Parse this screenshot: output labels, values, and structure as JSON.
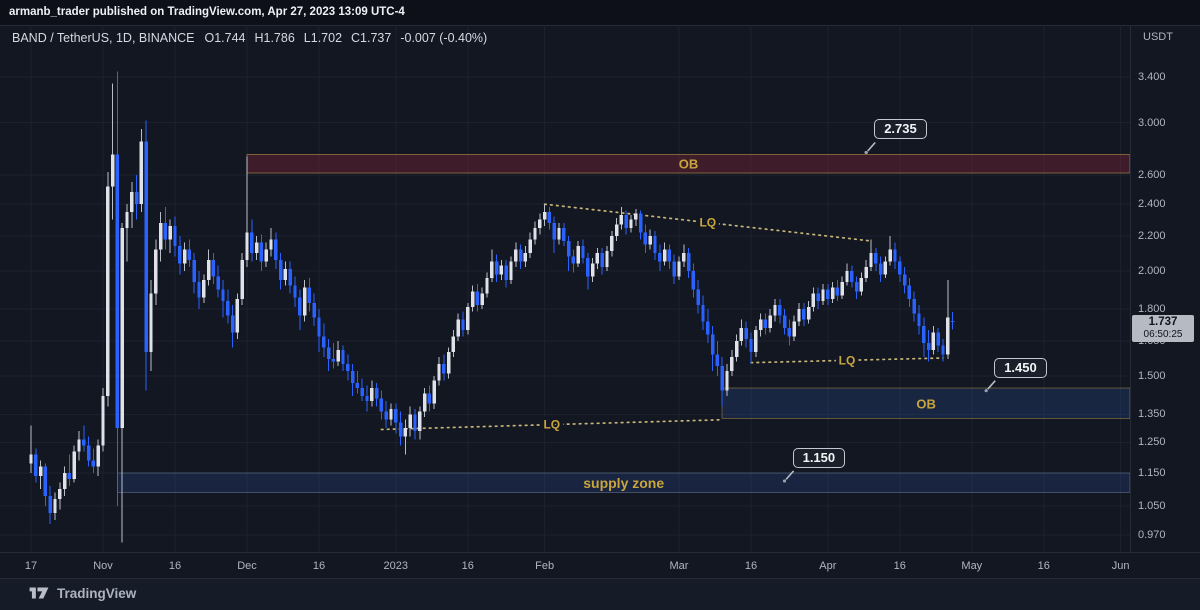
{
  "topbar": {
    "text": "armanb_trader published on TradingView.com, Apr 27, 2023 13:09 UTC-4"
  },
  "legend": {
    "symbol": "BAND / TetherUS, 1D, BINANCE",
    "values": [
      "O1.744",
      "H1.786",
      "L1.702",
      "C1.737",
      "-0.007 (-0.40%)"
    ]
  },
  "price_axis": {
    "currency": "USDT",
    "ticks": [
      "3.400",
      "3.000",
      "2.600",
      "2.400",
      "2.200",
      "2.000",
      "1.800",
      "1.650",
      "1.500",
      "1.350",
      "1.250",
      "1.150",
      "1.050",
      "0.970"
    ],
    "last_price": "1.737",
    "countdown": "06:50:25"
  },
  "time_axis": {
    "ticks": [
      {
        "label": "17",
        "i": 0
      },
      {
        "label": "Nov",
        "i": 15
      },
      {
        "label": "16",
        "i": 30
      },
      {
        "label": "Dec",
        "i": 45
      },
      {
        "label": "16",
        "i": 60
      },
      {
        "label": "2023",
        "i": 76
      },
      {
        "label": "16",
        "i": 91
      },
      {
        "label": "Feb",
        "i": 107
      },
      {
        "label": "Mar",
        "i": 135
      },
      {
        "label": "16",
        "i": 150
      },
      {
        "label": "Apr",
        "i": 166
      },
      {
        "label": "16",
        "i": 181
      },
      {
        "label": "May",
        "i": 196
      },
      {
        "label": "16",
        "i": 211
      },
      {
        "label": "Jun",
        "i": 227
      }
    ]
  },
  "footer": {
    "brand": "TradingView"
  },
  "colors": {
    "up": "#dfe2e8",
    "up_wick": "#b9bfc9",
    "down": "#2962ff",
    "accent_yellow": "#c9a53e",
    "dotted_line": "#c6b577",
    "badge_bg": "#b6bac3",
    "background": "#131722",
    "grid": "#1c2130"
  },
  "chart_data": {
    "type": "candlestick",
    "symbol": "BAND/USDT",
    "exchange": "BINANCE",
    "timeframe": "1D",
    "scale": "log",
    "start_date": "2022-10-17",
    "end_date": "2023-04-27",
    "ylim": [
      0.93,
      3.9
    ],
    "last": {
      "open": 1.744,
      "high": 1.786,
      "low": 1.702,
      "close": 1.737,
      "change": -0.007,
      "change_pct": -0.4
    },
    "zones": [
      {
        "kind": "ob-red",
        "label": "OB",
        "start_index": 45,
        "price_top": 2.75,
        "price_bottom": 2.615,
        "fill": "rgba(130,38,54,0.40)",
        "border": "rgba(193,157,72,0.55)",
        "label_size": 13
      },
      {
        "kind": "ob-blue",
        "label": "OB",
        "start_index": 144,
        "price_top": 1.45,
        "price_bottom": 1.335,
        "fill": "rgba(40,70,135,0.33)",
        "border": "rgba(193,157,72,0.45)",
        "label_size": 13
      },
      {
        "kind": "supply",
        "label": "supply zone",
        "start_index": 18,
        "price_top": 1.15,
        "price_bottom": 1.089,
        "fill": "rgba(40,70,135,0.30)",
        "border": "rgba(150,170,195,0.35)",
        "label_size": 14
      }
    ],
    "trendlines": [
      {
        "label": "LQ",
        "from_index": 107,
        "from_price": 2.4,
        "to_index": 175,
        "to_price": 2.17
      },
      {
        "label": "LQ",
        "from_index": 150,
        "from_price": 1.555,
        "to_index": 190,
        "to_price": 1.575
      },
      {
        "label": "LQ",
        "from_index": 73,
        "from_price": 1.295,
        "to_index": 144,
        "to_price": 1.33
      }
    ],
    "price_labels": [
      {
        "text": "2.735",
        "anchor_index": 174,
        "anchor_price": 2.765
      },
      {
        "text": "1.450",
        "anchor_index": 199,
        "anchor_price": 1.44
      },
      {
        "text": "1.150",
        "anchor_index": 157,
        "anchor_price": 1.125
      }
    ],
    "ohlc": [
      [
        1.18,
        1.31,
        1.15,
        1.21
      ],
      [
        1.21,
        1.23,
        1.12,
        1.14
      ],
      [
        1.14,
        1.19,
        1.1,
        1.17
      ],
      [
        1.17,
        1.18,
        1.05,
        1.08
      ],
      [
        1.08,
        1.11,
        1.0,
        1.03
      ],
      [
        1.03,
        1.09,
        1.01,
        1.07
      ],
      [
        1.07,
        1.12,
        1.04,
        1.1
      ],
      [
        1.1,
        1.17,
        1.08,
        1.15
      ],
      [
        1.15,
        1.21,
        1.11,
        1.13
      ],
      [
        1.13,
        1.24,
        1.12,
        1.22
      ],
      [
        1.22,
        1.29,
        1.19,
        1.26
      ],
      [
        1.26,
        1.31,
        1.22,
        1.24
      ],
      [
        1.24,
        1.27,
        1.17,
        1.19
      ],
      [
        1.19,
        1.23,
        1.15,
        1.17
      ],
      [
        1.17,
        1.26,
        1.14,
        1.24
      ],
      [
        1.24,
        1.45,
        1.22,
        1.42
      ],
      [
        1.42,
        2.62,
        1.38,
        2.52
      ],
      [
        2.52,
        3.34,
        2.3,
        2.75
      ],
      [
        2.75,
        3.45,
        1.05,
        1.3
      ],
      [
        1.3,
        2.28,
        0.95,
        2.25
      ],
      [
        2.25,
        2.4,
        2.05,
        2.35
      ],
      [
        2.35,
        2.55,
        2.25,
        2.48
      ],
      [
        2.48,
        2.6,
        2.3,
        2.4
      ],
      [
        2.4,
        2.95,
        2.35,
        2.85
      ],
      [
        2.85,
        3.02,
        1.44,
        1.6
      ],
      [
        1.6,
        1.95,
        1.52,
        1.88
      ],
      [
        1.88,
        2.18,
        1.82,
        2.12
      ],
      [
        2.12,
        2.35,
        2.05,
        2.28
      ],
      [
        2.28,
        2.38,
        2.12,
        2.18
      ],
      [
        2.18,
        2.3,
        2.1,
        2.26
      ],
      [
        2.26,
        2.32,
        2.08,
        2.14
      ],
      [
        2.14,
        2.2,
        1.98,
        2.04
      ],
      [
        2.04,
        2.16,
        2.0,
        2.12
      ],
      [
        2.12,
        2.18,
        2.02,
        2.06
      ],
      [
        2.06,
        2.1,
        1.88,
        1.94
      ],
      [
        1.94,
        2.0,
        1.8,
        1.86
      ],
      [
        1.86,
        1.98,
        1.83,
        1.95
      ],
      [
        1.95,
        2.12,
        1.92,
        2.06
      ],
      [
        2.06,
        2.1,
        1.93,
        1.97
      ],
      [
        1.97,
        2.03,
        1.86,
        1.9
      ],
      [
        1.9,
        1.95,
        1.76,
        1.84
      ],
      [
        1.84,
        1.9,
        1.73,
        1.77
      ],
      [
        1.77,
        1.82,
        1.62,
        1.69
      ],
      [
        1.69,
        1.88,
        1.66,
        1.85
      ],
      [
        1.85,
        2.1,
        1.82,
        2.06
      ],
      [
        2.06,
        2.735,
        2.02,
        2.22
      ],
      [
        2.22,
        2.3,
        2.05,
        2.1
      ],
      [
        2.1,
        2.2,
        2.06,
        2.16
      ],
      [
        2.16,
        2.21,
        2.0,
        2.05
      ],
      [
        2.05,
        2.16,
        2.02,
        2.12
      ],
      [
        2.12,
        2.25,
        2.08,
        2.18
      ],
      [
        2.18,
        2.22,
        2.01,
        2.06
      ],
      [
        2.06,
        2.1,
        1.9,
        1.95
      ],
      [
        1.95,
        2.05,
        1.92,
        2.01
      ],
      [
        2.01,
        2.05,
        1.88,
        1.92
      ],
      [
        1.92,
        1.97,
        1.81,
        1.86
      ],
      [
        1.86,
        1.9,
        1.7,
        1.77
      ],
      [
        1.77,
        1.95,
        1.74,
        1.91
      ],
      [
        1.91,
        1.96,
        1.79,
        1.83
      ],
      [
        1.83,
        1.88,
        1.72,
        1.76
      ],
      [
        1.76,
        1.8,
        1.6,
        1.67
      ],
      [
        1.67,
        1.73,
        1.58,
        1.62
      ],
      [
        1.62,
        1.66,
        1.52,
        1.57
      ],
      [
        1.57,
        1.64,
        1.53,
        1.56
      ],
      [
        1.56,
        1.65,
        1.54,
        1.61
      ],
      [
        1.61,
        1.63,
        1.52,
        1.55
      ],
      [
        1.55,
        1.59,
        1.48,
        1.52
      ],
      [
        1.52,
        1.55,
        1.42,
        1.47
      ],
      [
        1.47,
        1.52,
        1.43,
        1.45
      ],
      [
        1.45,
        1.49,
        1.4,
        1.42
      ],
      [
        1.42,
        1.46,
        1.36,
        1.4
      ],
      [
        1.4,
        1.48,
        1.38,
        1.45
      ],
      [
        1.45,
        1.47,
        1.38,
        1.41
      ],
      [
        1.41,
        1.44,
        1.33,
        1.36
      ],
      [
        1.36,
        1.4,
        1.3,
        1.33
      ],
      [
        1.33,
        1.39,
        1.31,
        1.37
      ],
      [
        1.37,
        1.39,
        1.28,
        1.32
      ],
      [
        1.32,
        1.36,
        1.24,
        1.27
      ],
      [
        1.27,
        1.33,
        1.21,
        1.3
      ],
      [
        1.3,
        1.38,
        1.27,
        1.35
      ],
      [
        1.35,
        1.37,
        1.26,
        1.29
      ],
      [
        1.29,
        1.38,
        1.26,
        1.36
      ],
      [
        1.36,
        1.45,
        1.34,
        1.43
      ],
      [
        1.43,
        1.46,
        1.36,
        1.39
      ],
      [
        1.39,
        1.5,
        1.37,
        1.48
      ],
      [
        1.48,
        1.58,
        1.46,
        1.55
      ],
      [
        1.55,
        1.59,
        1.48,
        1.51
      ],
      [
        1.51,
        1.62,
        1.49,
        1.6
      ],
      [
        1.6,
        1.7,
        1.58,
        1.67
      ],
      [
        1.67,
        1.78,
        1.65,
        1.75
      ],
      [
        1.75,
        1.79,
        1.67,
        1.7
      ],
      [
        1.7,
        1.83,
        1.68,
        1.81
      ],
      [
        1.81,
        1.92,
        1.79,
        1.89
      ],
      [
        1.89,
        1.93,
        1.79,
        1.82
      ],
      [
        1.82,
        1.91,
        1.8,
        1.88
      ],
      [
        1.88,
        1.99,
        1.86,
        1.96
      ],
      [
        1.96,
        2.12,
        1.94,
        2.05
      ],
      [
        2.05,
        2.09,
        1.94,
        1.98
      ],
      [
        1.98,
        2.06,
        1.95,
        2.03
      ],
      [
        2.03,
        2.06,
        1.91,
        1.95
      ],
      [
        1.95,
        2.08,
        1.93,
        2.05
      ],
      [
        2.05,
        2.16,
        2.02,
        2.12
      ],
      [
        2.12,
        2.15,
        2.01,
        2.05
      ],
      [
        2.05,
        2.14,
        2.02,
        2.1
      ],
      [
        2.1,
        2.22,
        2.07,
        2.18
      ],
      [
        2.18,
        2.29,
        2.15,
        2.25
      ],
      [
        2.25,
        2.34,
        2.21,
        2.3
      ],
      [
        2.3,
        2.4,
        2.26,
        2.35
      ],
      [
        2.35,
        2.38,
        2.24,
        2.28
      ],
      [
        2.28,
        2.32,
        2.1,
        2.18
      ],
      [
        2.18,
        2.28,
        2.15,
        2.25
      ],
      [
        2.25,
        2.28,
        2.14,
        2.17
      ],
      [
        2.17,
        2.2,
        2.0,
        2.08
      ],
      [
        2.08,
        2.12,
        1.99,
        2.04
      ],
      [
        2.04,
        2.17,
        2.02,
        2.14
      ],
      [
        2.14,
        2.18,
        2.04,
        2.07
      ],
      [
        2.07,
        2.1,
        1.9,
        1.97
      ],
      [
        1.97,
        2.07,
        1.94,
        2.04
      ],
      [
        2.04,
        2.13,
        2.01,
        2.1
      ],
      [
        2.1,
        2.13,
        1.98,
        2.02
      ],
      [
        2.02,
        2.14,
        2.0,
        2.11
      ],
      [
        2.11,
        2.23,
        2.08,
        2.2
      ],
      [
        2.2,
        2.31,
        2.17,
        2.27
      ],
      [
        2.27,
        2.38,
        2.24,
        2.33
      ],
      [
        2.33,
        2.36,
        2.21,
        2.25
      ],
      [
        2.25,
        2.33,
        2.22,
        2.3
      ],
      [
        2.3,
        2.37,
        2.26,
        2.34
      ],
      [
        2.34,
        2.36,
        2.18,
        2.22
      ],
      [
        2.22,
        2.27,
        2.1,
        2.15
      ],
      [
        2.15,
        2.24,
        2.12,
        2.2
      ],
      [
        2.2,
        2.23,
        2.06,
        2.1
      ],
      [
        2.1,
        2.15,
        2.0,
        2.05
      ],
      [
        2.05,
        2.16,
        2.03,
        2.12
      ],
      [
        2.12,
        2.15,
        2.01,
        2.05
      ],
      [
        2.05,
        2.09,
        1.93,
        1.97
      ],
      [
        1.97,
        2.08,
        1.95,
        2.05
      ],
      [
        2.05,
        2.15,
        2.02,
        2.1
      ],
      [
        2.1,
        2.13,
        1.96,
        2.0
      ],
      [
        2.0,
        2.04,
        1.86,
        1.9
      ],
      [
        1.9,
        1.95,
        1.78,
        1.82
      ],
      [
        1.82,
        1.87,
        1.7,
        1.74
      ],
      [
        1.74,
        1.8,
        1.64,
        1.68
      ],
      [
        1.68,
        1.72,
        1.52,
        1.59
      ],
      [
        1.59,
        1.65,
        1.5,
        1.54
      ],
      [
        1.54,
        1.58,
        1.38,
        1.44
      ],
      [
        1.44,
        1.55,
        1.42,
        1.52
      ],
      [
        1.52,
        1.61,
        1.5,
        1.58
      ],
      [
        1.58,
        1.68,
        1.56,
        1.65
      ],
      [
        1.65,
        1.75,
        1.63,
        1.71
      ],
      [
        1.71,
        1.74,
        1.62,
        1.66
      ],
      [
        1.66,
        1.69,
        1.55,
        1.6
      ],
      [
        1.6,
        1.72,
        1.58,
        1.7
      ],
      [
        1.7,
        1.78,
        1.67,
        1.75
      ],
      [
        1.75,
        1.78,
        1.68,
        1.71
      ],
      [
        1.71,
        1.8,
        1.69,
        1.77
      ],
      [
        1.77,
        1.85,
        1.74,
        1.82
      ],
      [
        1.82,
        1.85,
        1.73,
        1.77
      ],
      [
        1.77,
        1.8,
        1.68,
        1.71
      ],
      [
        1.71,
        1.75,
        1.63,
        1.67
      ],
      [
        1.67,
        1.77,
        1.65,
        1.74
      ],
      [
        1.74,
        1.83,
        1.72,
        1.8
      ],
      [
        1.8,
        1.83,
        1.72,
        1.75
      ],
      [
        1.75,
        1.84,
        1.73,
        1.81
      ],
      [
        1.81,
        1.91,
        1.79,
        1.88
      ],
      [
        1.88,
        1.91,
        1.8,
        1.84
      ],
      [
        1.84,
        1.93,
        1.82,
        1.9
      ],
      [
        1.9,
        1.93,
        1.82,
        1.85
      ],
      [
        1.85,
        1.94,
        1.83,
        1.91
      ],
      [
        1.91,
        1.95,
        1.84,
        1.87
      ],
      [
        1.87,
        1.97,
        1.85,
        1.94
      ],
      [
        1.94,
        2.04,
        1.92,
        2.0
      ],
      [
        2.0,
        2.03,
        1.91,
        1.94
      ],
      [
        1.94,
        1.97,
        1.85,
        1.89
      ],
      [
        1.89,
        1.99,
        1.87,
        1.96
      ],
      [
        1.96,
        2.06,
        1.94,
        2.02
      ],
      [
        2.02,
        2.18,
        2.0,
        2.1
      ],
      [
        2.1,
        2.13,
        2.0,
        2.04
      ],
      [
        2.04,
        2.08,
        1.94,
        1.98
      ],
      [
        1.98,
        2.08,
        1.96,
        2.05
      ],
      [
        2.05,
        2.2,
        2.03,
        2.12
      ],
      [
        2.12,
        2.16,
        2.01,
        2.05
      ],
      [
        2.05,
        2.08,
        1.94,
        1.98
      ],
      [
        1.98,
        2.02,
        1.88,
        1.92
      ],
      [
        1.92,
        1.96,
        1.81,
        1.85
      ],
      [
        1.85,
        1.89,
        1.74,
        1.78
      ],
      [
        1.78,
        1.82,
        1.68,
        1.72
      ],
      [
        1.72,
        1.76,
        1.58,
        1.64
      ],
      [
        1.64,
        1.7,
        1.56,
        1.61
      ],
      [
        1.61,
        1.72,
        1.59,
        1.69
      ],
      [
        1.69,
        1.71,
        1.6,
        1.63
      ],
      [
        1.63,
        1.66,
        1.56,
        1.59
      ],
      [
        1.59,
        1.95,
        1.57,
        1.76
      ],
      [
        1.744,
        1.786,
        1.702,
        1.737
      ]
    ]
  }
}
